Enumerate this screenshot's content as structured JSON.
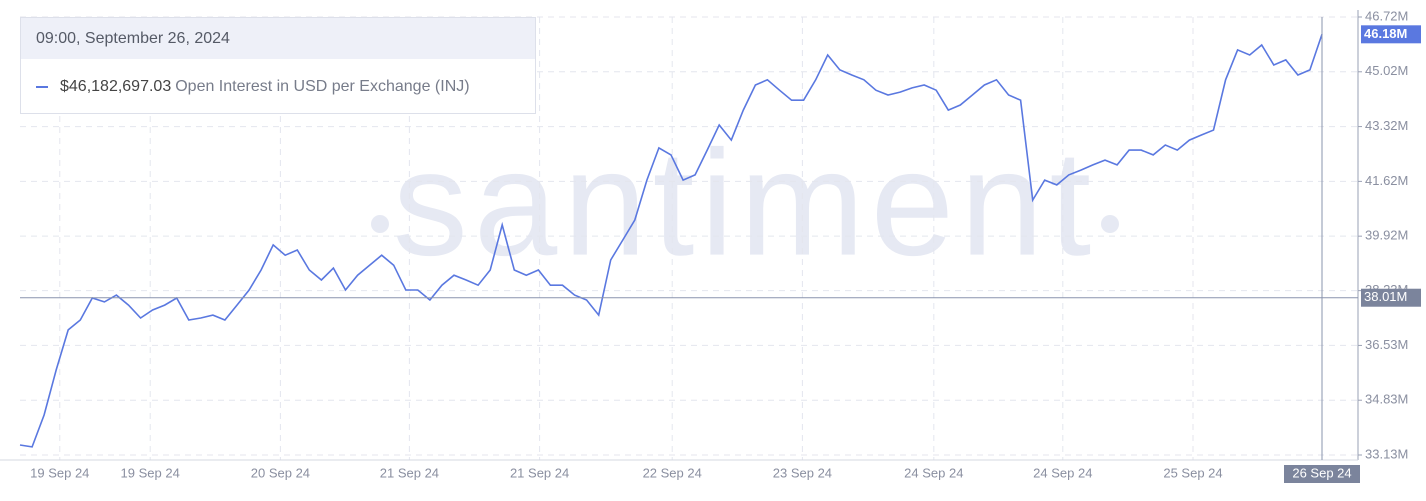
{
  "chart_data": {
    "type": "line",
    "watermark": "santiment",
    "tooltip": {
      "title": "09:00, September 26, 2024",
      "value_label": "$46,182,697.03"
    },
    "last_value_label": "46.18M",
    "crosshair_y": {
      "value": 38010000,
      "label": "38.01M"
    },
    "crosshair_x_label": "26 Sep 24",
    "ylim": [
      33130000,
      46720000
    ],
    "yticks": [
      {
        "value": 33130000,
        "label": "33.13M"
      },
      {
        "value": 34830000,
        "label": "34.83M"
      },
      {
        "value": 36530000,
        "label": "36.53M"
      },
      {
        "value": 38230000,
        "label": "38.23M"
      },
      {
        "value": 39920000,
        "label": "39.92M"
      },
      {
        "value": 41620000,
        "label": "41.62M"
      },
      {
        "value": 43320000,
        "label": "43.32M"
      },
      {
        "value": 45020000,
        "label": "45.02M"
      },
      {
        "value": 46720000,
        "label": "46.72M"
      }
    ],
    "xticks": [
      {
        "value": 3.3,
        "label": "19 Sep 24"
      },
      {
        "value": 10.8,
        "label": "19 Sep 24"
      },
      {
        "value": 21.6,
        "label": "20 Sep 24"
      },
      {
        "value": 32.3,
        "label": "21 Sep 24"
      },
      {
        "value": 43.1,
        "label": "21 Sep 24"
      },
      {
        "value": 54.1,
        "label": "22 Sep 24"
      },
      {
        "value": 64.9,
        "label": "23 Sep 24"
      },
      {
        "value": 75.8,
        "label": "24 Sep 24"
      },
      {
        "value": 86.5,
        "label": "24 Sep 24"
      },
      {
        "value": 97.3,
        "label": "25 Sep 24"
      }
    ],
    "grid": true,
    "series": [
      {
        "name": "Open Interest in USD per Exchange (INJ)",
        "color": "#5a78e0",
        "values": [
          33440000,
          33380000,
          34370000,
          35770000,
          37010000,
          37320000,
          38000000,
          37880000,
          38090000,
          37780000,
          37380000,
          37630000,
          37780000,
          38000000,
          37320000,
          37380000,
          37470000,
          37320000,
          37780000,
          38250000,
          38870000,
          39650000,
          39330000,
          39490000,
          38870000,
          38560000,
          38930000,
          38250000,
          38710000,
          39020000,
          39330000,
          39020000,
          38250000,
          38250000,
          37940000,
          38400000,
          38710000,
          38560000,
          38400000,
          38870000,
          40270000,
          38870000,
          38710000,
          38870000,
          38400000,
          38400000,
          38090000,
          37940000,
          37470000,
          39180000,
          39800000,
          40420000,
          41660000,
          42660000,
          42440000,
          41660000,
          41820000,
          42590000,
          43370000,
          42900000,
          43830000,
          44610000,
          44770000,
          44450000,
          44140000,
          44140000,
          44770000,
          45540000,
          45080000,
          44920000,
          44770000,
          44450000,
          44300000,
          44390000,
          44520000,
          44610000,
          44450000,
          43830000,
          43990000,
          44300000,
          44610000,
          44770000,
          44300000,
          44140000,
          41040000,
          41660000,
          41510000,
          41820000,
          41970000,
          42130000,
          42280000,
          42130000,
          42590000,
          42590000,
          42440000,
          42750000,
          42590000,
          42900000,
          43060000,
          43210000,
          44770000,
          45700000,
          45540000,
          45850000,
          45230000,
          45390000,
          44920000,
          45080000,
          46182697.03
        ]
      }
    ]
  }
}
